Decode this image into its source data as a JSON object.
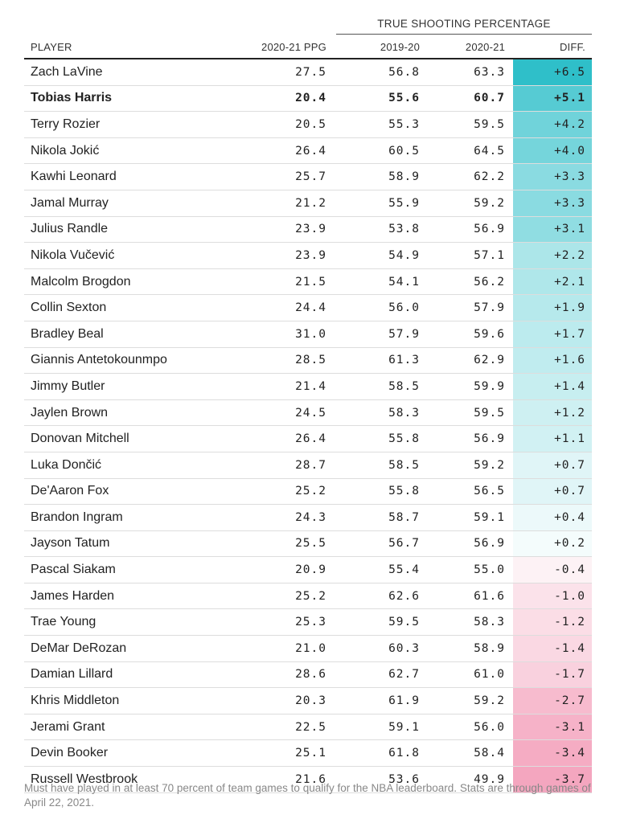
{
  "chart_data": {
    "type": "table",
    "group_header": "TRUE SHOOTING PERCENTAGE",
    "columns": [
      "PLAYER",
      "2020-21 PPG",
      "2019-20",
      "2020-21",
      "DIFF."
    ],
    "highlight_row": "Tobias Harris",
    "rows": [
      {
        "player": "Zach LaVine",
        "ppg": "27.5",
        "ts_2019_20": "56.8",
        "ts_2020_21": "63.3",
        "diff": "+6.5",
        "diff_value": 6.5
      },
      {
        "player": "Tobias Harris",
        "ppg": "20.4",
        "ts_2019_20": "55.6",
        "ts_2020_21": "60.7",
        "diff": "+5.1",
        "diff_value": 5.1
      },
      {
        "player": "Terry Rozier",
        "ppg": "20.5",
        "ts_2019_20": "55.3",
        "ts_2020_21": "59.5",
        "diff": "+4.2",
        "diff_value": 4.2
      },
      {
        "player": "Nikola Jokić",
        "ppg": "26.4",
        "ts_2019_20": "60.5",
        "ts_2020_21": "64.5",
        "diff": "+4.0",
        "diff_value": 4.0
      },
      {
        "player": "Kawhi Leonard",
        "ppg": "25.7",
        "ts_2019_20": "58.9",
        "ts_2020_21": "62.2",
        "diff": "+3.3",
        "diff_value": 3.3
      },
      {
        "player": "Jamal Murray",
        "ppg": "21.2",
        "ts_2019_20": "55.9",
        "ts_2020_21": "59.2",
        "diff": "+3.3",
        "diff_value": 3.3
      },
      {
        "player": "Julius Randle",
        "ppg": "23.9",
        "ts_2019_20": "53.8",
        "ts_2020_21": "56.9",
        "diff": "+3.1",
        "diff_value": 3.1
      },
      {
        "player": "Nikola Vučević",
        "ppg": "23.9",
        "ts_2019_20": "54.9",
        "ts_2020_21": "57.1",
        "diff": "+2.2",
        "diff_value": 2.2
      },
      {
        "player": "Malcolm Brogdon",
        "ppg": "21.5",
        "ts_2019_20": "54.1",
        "ts_2020_21": "56.2",
        "diff": "+2.1",
        "diff_value": 2.1
      },
      {
        "player": "Collin Sexton",
        "ppg": "24.4",
        "ts_2019_20": "56.0",
        "ts_2020_21": "57.9",
        "diff": "+1.9",
        "diff_value": 1.9
      },
      {
        "player": "Bradley Beal",
        "ppg": "31.0",
        "ts_2019_20": "57.9",
        "ts_2020_21": "59.6",
        "diff": "+1.7",
        "diff_value": 1.7
      },
      {
        "player": "Giannis Antetokounmpo",
        "ppg": "28.5",
        "ts_2019_20": "61.3",
        "ts_2020_21": "62.9",
        "diff": "+1.6",
        "diff_value": 1.6
      },
      {
        "player": "Jimmy Butler",
        "ppg": "21.4",
        "ts_2019_20": "58.5",
        "ts_2020_21": "59.9",
        "diff": "+1.4",
        "diff_value": 1.4
      },
      {
        "player": "Jaylen Brown",
        "ppg": "24.5",
        "ts_2019_20": "58.3",
        "ts_2020_21": "59.5",
        "diff": "+1.2",
        "diff_value": 1.2
      },
      {
        "player": "Donovan Mitchell",
        "ppg": "26.4",
        "ts_2019_20": "55.8",
        "ts_2020_21": "56.9",
        "diff": "+1.1",
        "diff_value": 1.1
      },
      {
        "player": "Luka Dončić",
        "ppg": "28.7",
        "ts_2019_20": "58.5",
        "ts_2020_21": "59.2",
        "diff": "+0.7",
        "diff_value": 0.7
      },
      {
        "player": "De'Aaron Fox",
        "ppg": "25.2",
        "ts_2019_20": "55.8",
        "ts_2020_21": "56.5",
        "diff": "+0.7",
        "diff_value": 0.7
      },
      {
        "player": "Brandon Ingram",
        "ppg": "24.3",
        "ts_2019_20": "58.7",
        "ts_2020_21": "59.1",
        "diff": "+0.4",
        "diff_value": 0.4
      },
      {
        "player": "Jayson Tatum",
        "ppg": "25.5",
        "ts_2019_20": "56.7",
        "ts_2020_21": "56.9",
        "diff": "+0.2",
        "diff_value": 0.2
      },
      {
        "player": "Pascal Siakam",
        "ppg": "20.9",
        "ts_2019_20": "55.4",
        "ts_2020_21": "55.0",
        "diff": "-0.4",
        "diff_value": -0.4
      },
      {
        "player": "James Harden",
        "ppg": "25.2",
        "ts_2019_20": "62.6",
        "ts_2020_21": "61.6",
        "diff": "-1.0",
        "diff_value": -1.0
      },
      {
        "player": "Trae Young",
        "ppg": "25.3",
        "ts_2019_20": "59.5",
        "ts_2020_21": "58.3",
        "diff": "-1.2",
        "diff_value": -1.2
      },
      {
        "player": "DeMar DeRozan",
        "ppg": "21.0",
        "ts_2019_20": "60.3",
        "ts_2020_21": "58.9",
        "diff": "-1.4",
        "diff_value": -1.4
      },
      {
        "player": "Damian Lillard",
        "ppg": "28.6",
        "ts_2019_20": "62.7",
        "ts_2020_21": "61.0",
        "diff": "-1.7",
        "diff_value": -1.7
      },
      {
        "player": "Khris Middleton",
        "ppg": "20.3",
        "ts_2019_20": "61.9",
        "ts_2020_21": "59.2",
        "diff": "-2.7",
        "diff_value": -2.7
      },
      {
        "player": "Jerami Grant",
        "ppg": "22.5",
        "ts_2019_20": "59.1",
        "ts_2020_21": "56.0",
        "diff": "-3.1",
        "diff_value": -3.1
      },
      {
        "player": "Devin Booker",
        "ppg": "25.1",
        "ts_2019_20": "61.8",
        "ts_2020_21": "58.4",
        "diff": "-3.4",
        "diff_value": -3.4
      },
      {
        "player": "Russell Westbrook",
        "ppg": "21.6",
        "ts_2019_20": "53.6",
        "ts_2020_21": "49.9",
        "diff": "-3.7",
        "diff_value": -3.7
      }
    ],
    "colors": {
      "positive_max": "#2fbfc9",
      "negative_max": "#f4a6bf",
      "neutral": "#ffffff"
    }
  },
  "footnote": "Must have played in at least 70 percent of team games to qualify for the NBA leaderboard. Stats are through games of April 22, 2021."
}
